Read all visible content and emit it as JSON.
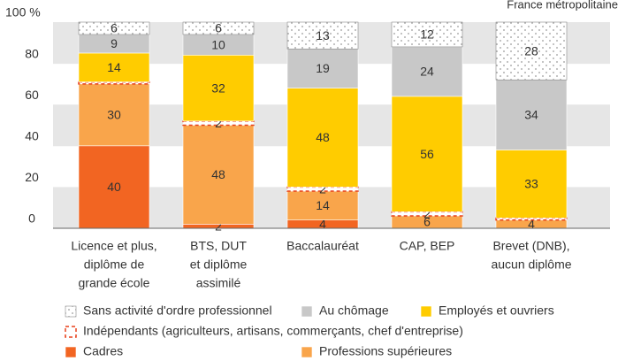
{
  "chart_data": {
    "type": "stacked_bar",
    "subtitle": "France métropolitaine",
    "categories": [
      [
        "Licence et plus,",
        "diplôme de",
        "grande école"
      ],
      [
        "BTS, DUT",
        "et diplôme",
        "assimilé"
      ],
      [
        "Baccalauréat"
      ],
      [
        "CAP, BEP"
      ],
      [
        "Brevet (DNB),",
        "aucun diplôme"
      ]
    ],
    "series": [
      {
        "name": "Cadres",
        "color": "#f26522",
        "values": [
          40,
          2,
          4,
          0,
          0
        ],
        "value_labels": [
          "40",
          "2",
          "4",
          null,
          null
        ]
      },
      {
        "name": "Professions supérieures",
        "color": "#f9a54b",
        "values": [
          30,
          48,
          14,
          6,
          4
        ],
        "value_labels": [
          "30",
          "48",
          "14",
          "6",
          "4"
        ]
      },
      {
        "name": "Indépendants (agriculteurs, artisans, commerçants, chef d'entreprise)",
        "color": "#e8401c",
        "pattern": "dashed",
        "values": [
          1,
          2,
          2,
          2,
          1
        ],
        "value_labels": [
          null,
          "2",
          "2",
          "2",
          null
        ]
      },
      {
        "name": "Employés et ouvriers",
        "color": "#ffcc00",
        "values": [
          14,
          32,
          48,
          56,
          33
        ],
        "value_labels": [
          "14",
          "32",
          "48",
          "56",
          "33"
        ]
      },
      {
        "name": "Au chômage",
        "color": "#c8c8c8",
        "values": [
          9,
          10,
          19,
          24,
          34
        ],
        "value_labels": [
          "9",
          "10",
          "19",
          "24",
          "34"
        ]
      },
      {
        "name": "Sans activité d'ordre professionnel",
        "color": "#b0b0b0",
        "pattern": "dotted",
        "values": [
          6,
          6,
          13,
          12,
          28
        ],
        "value_labels": [
          "6",
          "6",
          "13",
          "12",
          "28"
        ]
      }
    ],
    "ylim": [
      0,
      100
    ],
    "yticks": [
      0,
      20,
      40,
      60,
      80,
      {
        "value": 100,
        "label": "100 %"
      }
    ],
    "grid": "bands"
  }
}
